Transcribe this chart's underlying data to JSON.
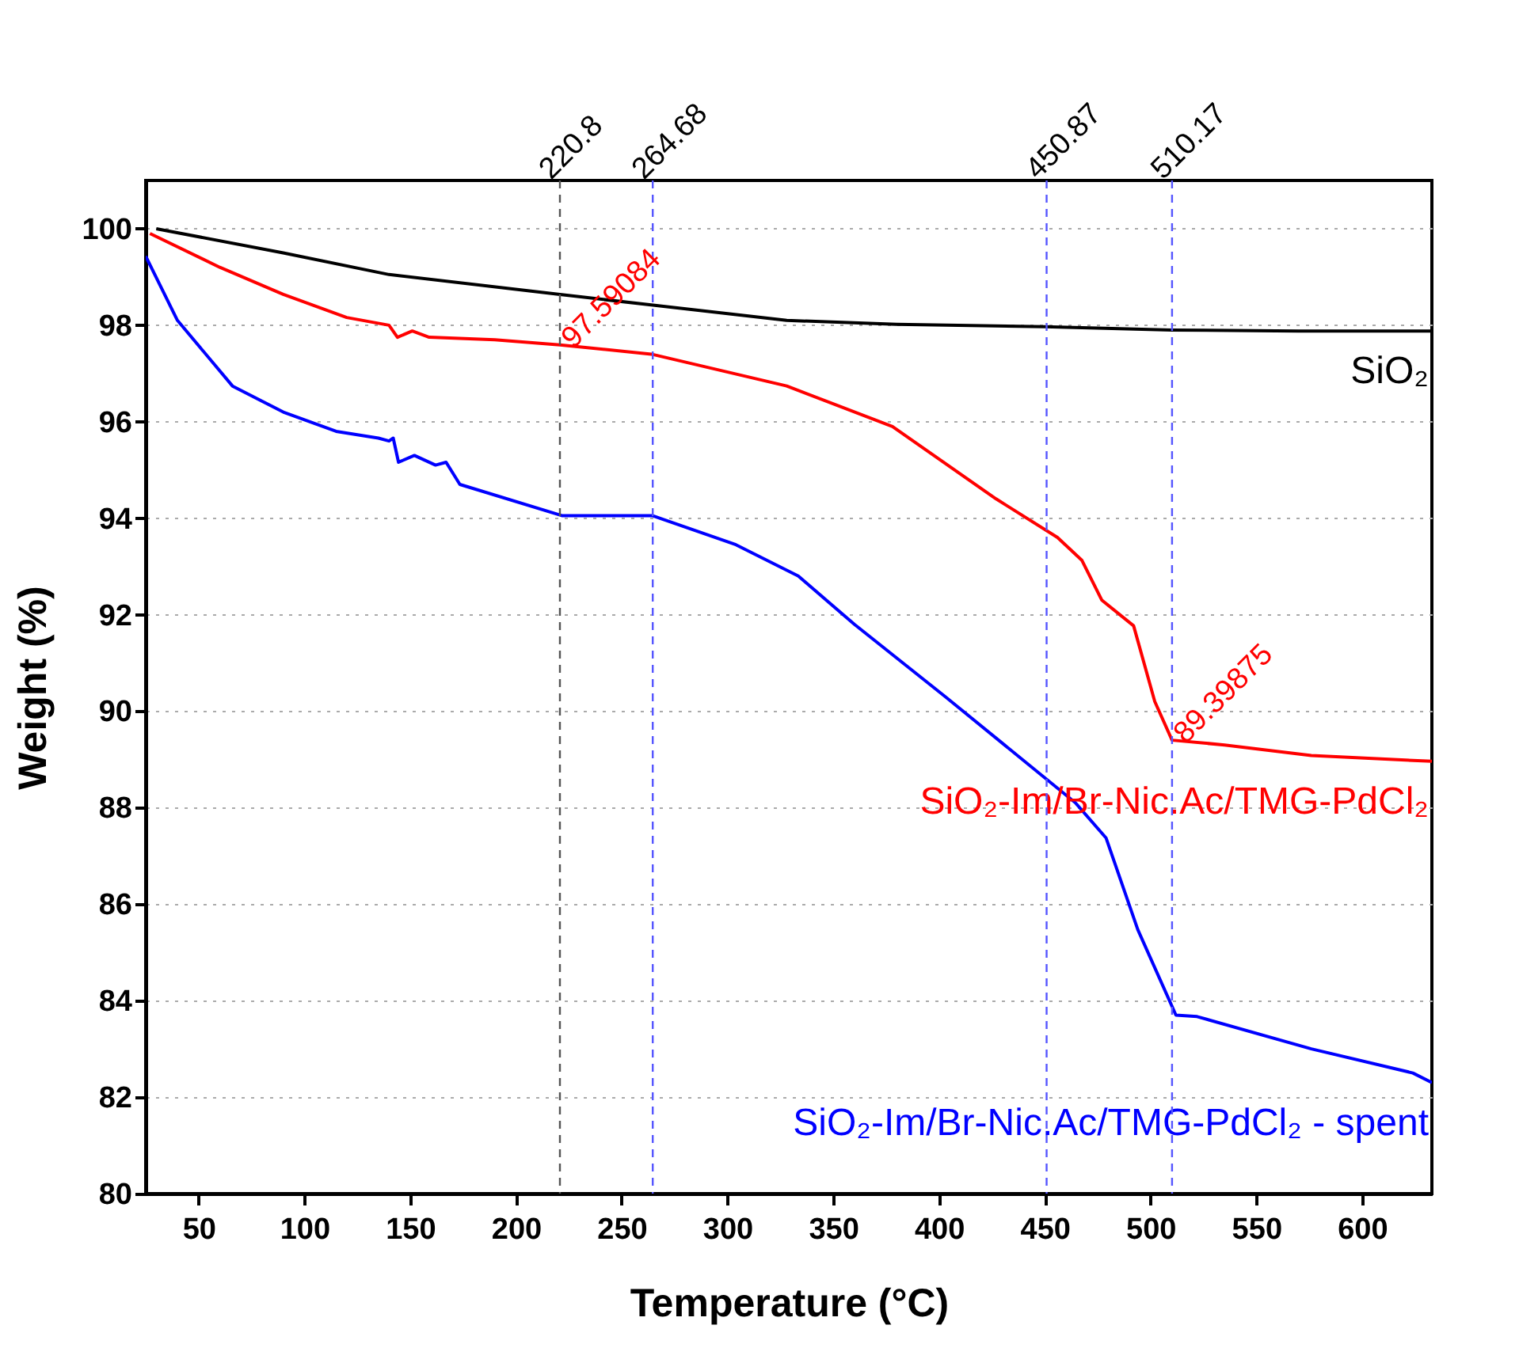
{
  "chart_data": {
    "type": "line",
    "xlabel": "Temperature (°C)",
    "ylabel": "Weight (%)",
    "xlim": [
      25,
      633
    ],
    "ylim": [
      80,
      101
    ],
    "xticks": [
      50,
      100,
      150,
      200,
      250,
      300,
      350,
      400,
      450,
      500,
      550,
      600
    ],
    "yticks": [
      80,
      82,
      84,
      86,
      88,
      90,
      92,
      94,
      96,
      98,
      100
    ],
    "grid": "y",
    "series": [
      {
        "name": "SiO₂",
        "color": "#000000",
        "x": [
          30,
          90,
          140,
          220,
          264,
          328,
          380,
          450,
          510,
          570,
          633
        ],
        "values": [
          100.0,
          99.5,
          99.05,
          98.64,
          98.42,
          98.1,
          98.02,
          97.97,
          97.9,
          97.88,
          97.88
        ]
      },
      {
        "name": "SiO₂-Im/Br-Nic.Ac/TMG-PdCl₂",
        "color": "#ff0000",
        "x": [
          27,
          60,
          90,
          120,
          140,
          144,
          151,
          159,
          190,
          220.8,
          264,
          328,
          378,
          427,
          456,
          467.5,
          477,
          492,
          502,
          510.17,
          535,
          576,
          633
        ],
        "values": [
          99.9,
          99.2,
          98.64,
          98.16,
          98.0,
          97.75,
          97.88,
          97.75,
          97.7,
          97.59084,
          97.4,
          96.74,
          95.9,
          94.4,
          93.6,
          93.13,
          92.3,
          91.77,
          90.2,
          89.39875,
          89.3,
          89.08,
          88.96
        ]
      },
      {
        "name": "SiO₂-Im/Br-Nic.Ac/TMG-PdCl₂ - spent",
        "color": "#0000ff",
        "x": [
          25,
          40,
          66,
          90,
          115,
          135,
          140,
          142,
          144.5,
          152,
          162,
          167,
          173.5,
          222,
          264.7,
          304,
          333.5,
          360,
          403,
          464.5,
          479,
          494,
          512,
          522,
          576,
          624,
          633
        ],
        "values": [
          99.43,
          98.1,
          96.74,
          96.2,
          95.8,
          95.66,
          95.6,
          95.66,
          95.16,
          95.3,
          95.1,
          95.16,
          94.7,
          94.05,
          94.05,
          93.45,
          92.8,
          91.8,
          90.3,
          88.1,
          87.37,
          85.47,
          83.7,
          83.67,
          83.0,
          82.5,
          82.3
        ]
      }
    ],
    "ref_lines": [
      {
        "axis": "x",
        "value": 220.8,
        "label": "220.8",
        "color": "#555555",
        "line_style": "dashed"
      },
      {
        "axis": "x",
        "value": 264.68,
        "label": "264.68",
        "color": "#5555ff",
        "line_style": "dashed"
      },
      {
        "axis": "x",
        "value": 450.87,
        "label": "450.87",
        "color": "#5555ff",
        "line_style": "dashed"
      },
      {
        "axis": "x",
        "value": 510.17,
        "label": "510.17",
        "color": "#5555ff",
        "line_style": "dashed"
      }
    ],
    "annotations": [
      {
        "text": "97.59084",
        "x": 220.8,
        "y": 97.59084
      },
      {
        "text": "89.39875",
        "x": 510.17,
        "y": 89.39875
      }
    ]
  }
}
